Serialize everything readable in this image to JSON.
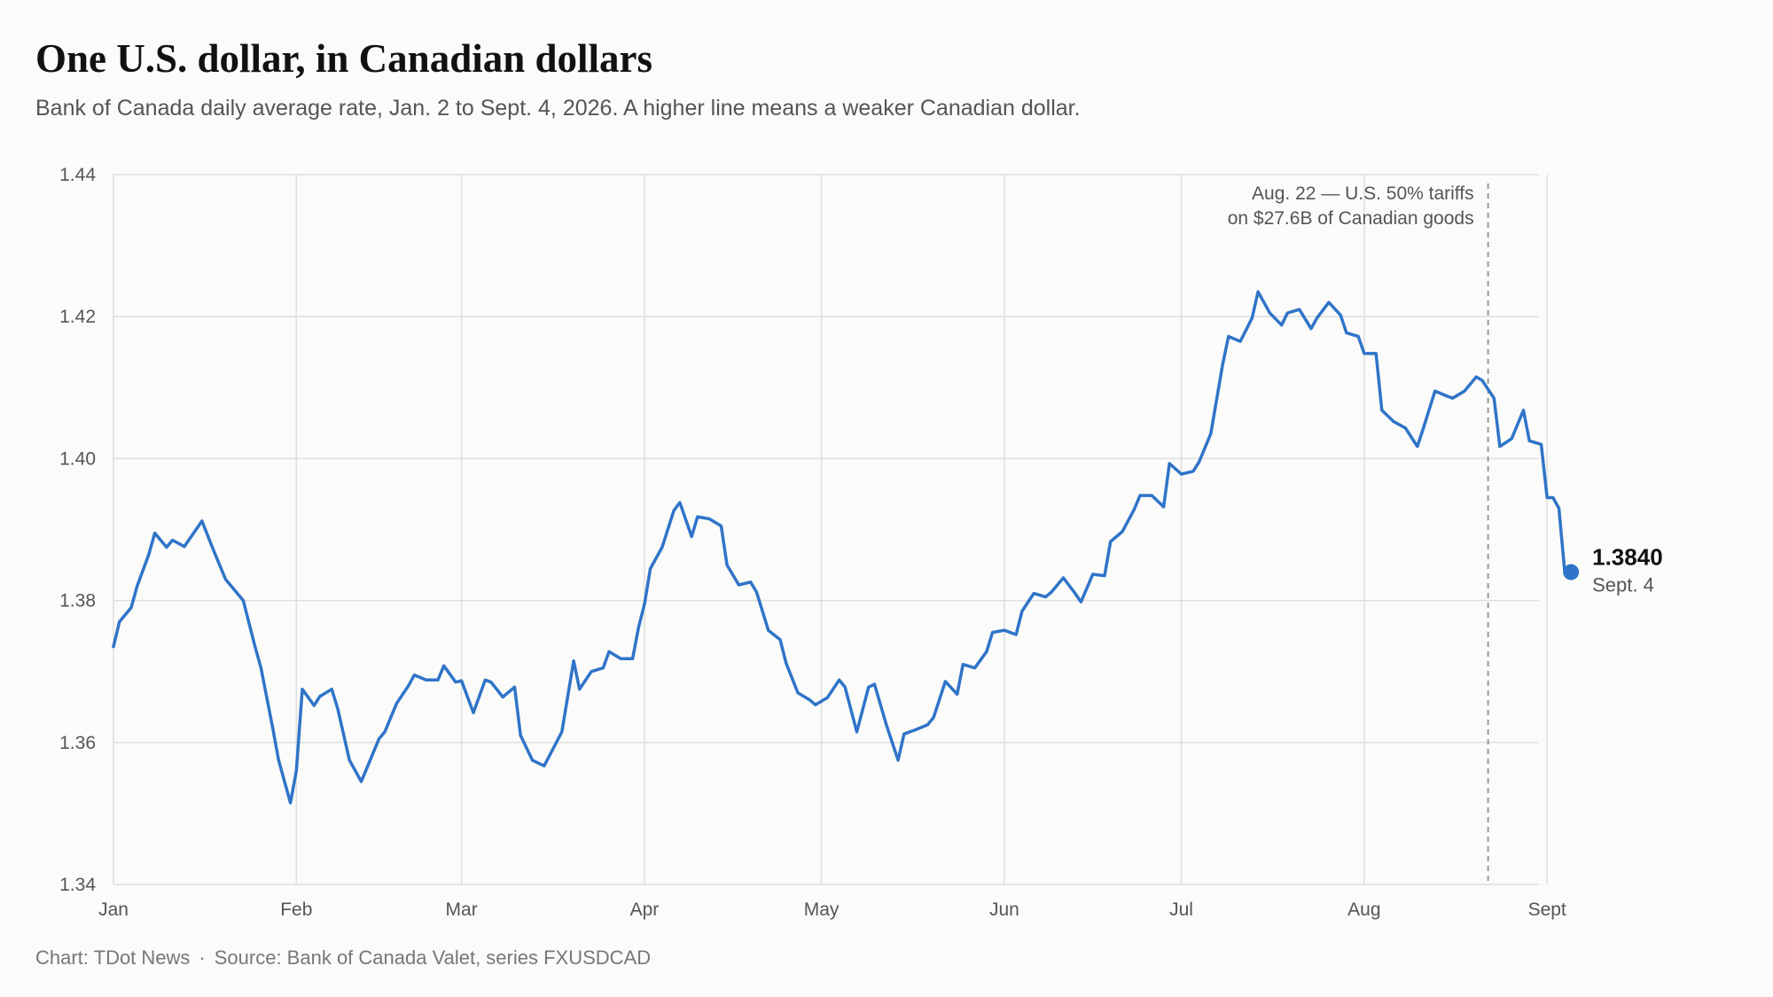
{
  "header": {
    "title": "One U.S. dollar, in Canadian dollars",
    "subtitle": "Bank of Canada daily average rate, Jan. 2 to Sept. 4, 2026. A higher line means a weaker Canadian dollar."
  },
  "footer": {
    "credit": "Chart: TDot News",
    "separator": "·",
    "source": "Source: Bank of Canada Valet, series FXUSDCAD"
  },
  "colors": {
    "line": "#2f74c8",
    "grid": "#dedede",
    "annotation_line": "#999999"
  },
  "chart_data": {
    "type": "line",
    "title": "One U.S. dollar, in Canadian dollars",
    "xlabel": "",
    "ylabel": "",
    "ylim": [
      1.34,
      1.44
    ],
    "yticks": [
      "1.34",
      "1.36",
      "1.38",
      "1.40",
      "1.42",
      "1.44"
    ],
    "xlim": [
      "2026-01-01",
      "2026-09-04"
    ],
    "xticks": [
      {
        "label": "Jan",
        "date": "2026-01-01"
      },
      {
        "label": "Feb",
        "date": "2026-02-01"
      },
      {
        "label": "Mar",
        "date": "2026-03-01"
      },
      {
        "label": "Apr",
        "date": "2026-04-01"
      },
      {
        "label": "May",
        "date": "2026-05-01"
      },
      {
        "label": "Jun",
        "date": "2026-06-01"
      },
      {
        "label": "Jul",
        "date": "2026-07-01"
      },
      {
        "label": "Aug",
        "date": "2026-08-01"
      },
      {
        "label": "Sept",
        "date": "2026-09-01"
      }
    ],
    "grid": true,
    "series": [
      {
        "name": "",
        "points": [
          [
            "2026-01-01",
            1.3735
          ],
          [
            "2026-01-02",
            1.377
          ],
          [
            "2026-01-04",
            1.379
          ],
          [
            "2026-01-05",
            1.382
          ],
          [
            "2026-01-07",
            1.3865
          ],
          [
            "2026-01-08",
            1.3895
          ],
          [
            "2026-01-10",
            1.3875
          ],
          [
            "2026-01-11",
            1.3885
          ],
          [
            "2026-01-13",
            1.3876
          ],
          [
            "2026-01-15",
            1.39
          ],
          [
            "2026-01-16",
            1.3912
          ],
          [
            "2026-01-18",
            1.387
          ],
          [
            "2026-01-20",
            1.383
          ],
          [
            "2026-01-21",
            1.382
          ],
          [
            "2026-01-23",
            1.38
          ],
          [
            "2026-01-25",
            1.3735
          ],
          [
            "2026-01-26",
            1.3705
          ],
          [
            "2026-01-28",
            1.362
          ],
          [
            "2026-01-29",
            1.3575
          ],
          [
            "2026-01-31",
            1.3515
          ],
          [
            "2026-02-01",
            1.356
          ],
          [
            "2026-02-02",
            1.3675
          ],
          [
            "2026-02-04",
            1.3652
          ],
          [
            "2026-02-05",
            1.3665
          ],
          [
            "2026-02-07",
            1.3675
          ],
          [
            "2026-02-08",
            1.3648
          ],
          [
            "2026-02-10",
            1.3575
          ],
          [
            "2026-02-12",
            1.3545
          ],
          [
            "2026-02-15",
            1.3605
          ],
          [
            "2026-02-16",
            1.3615
          ],
          [
            "2026-02-18",
            1.3655
          ],
          [
            "2026-02-20",
            1.368
          ],
          [
            "2026-02-21",
            1.3695
          ],
          [
            "2026-02-23",
            1.3688
          ],
          [
            "2026-02-25",
            1.3688
          ],
          [
            "2026-02-26",
            1.3708
          ],
          [
            "2026-02-28",
            1.3685
          ],
          [
            "2026-03-01",
            1.3687
          ],
          [
            "2026-03-03",
            1.3642
          ],
          [
            "2026-03-05",
            1.3688
          ],
          [
            "2026-03-06",
            1.3685
          ],
          [
            "2026-03-08",
            1.3664
          ],
          [
            "2026-03-10",
            1.3678
          ],
          [
            "2026-03-11",
            1.361
          ],
          [
            "2026-03-13",
            1.3575
          ],
          [
            "2026-03-15",
            1.3567
          ],
          [
            "2026-03-16",
            1.3583
          ],
          [
            "2026-03-18",
            1.3615
          ],
          [
            "2026-03-20",
            1.3715
          ],
          [
            "2026-03-21",
            1.3675
          ],
          [
            "2026-03-23",
            1.37
          ],
          [
            "2026-03-25",
            1.3705
          ],
          [
            "2026-03-26",
            1.3728
          ],
          [
            "2026-03-28",
            1.3718
          ],
          [
            "2026-03-30",
            1.3718
          ],
          [
            "2026-03-31",
            1.3762
          ],
          [
            "2026-04-01",
            1.3795
          ],
          [
            "2026-04-02",
            1.3845
          ],
          [
            "2026-04-04",
            1.3875
          ],
          [
            "2026-04-06",
            1.3927
          ],
          [
            "2026-04-07",
            1.3938
          ],
          [
            "2026-04-09",
            1.389
          ],
          [
            "2026-04-10",
            1.3918
          ],
          [
            "2026-04-12",
            1.3915
          ],
          [
            "2026-04-14",
            1.3905
          ],
          [
            "2026-04-15",
            1.385
          ],
          [
            "2026-04-17",
            1.3822
          ],
          [
            "2026-04-19",
            1.3826
          ],
          [
            "2026-04-20",
            1.3812
          ],
          [
            "2026-04-22",
            1.3758
          ],
          [
            "2026-04-24",
            1.3745
          ],
          [
            "2026-04-25",
            1.3712
          ],
          [
            "2026-04-27",
            1.367
          ],
          [
            "2026-04-29",
            1.366
          ],
          [
            "2026-04-30",
            1.3653
          ],
          [
            "2026-05-02",
            1.3663
          ],
          [
            "2026-05-04",
            1.3688
          ],
          [
            "2026-05-05",
            1.3678
          ],
          [
            "2026-05-07",
            1.3615
          ],
          [
            "2026-05-09",
            1.3678
          ],
          [
            "2026-05-10",
            1.3682
          ],
          [
            "2026-05-12",
            1.3625
          ],
          [
            "2026-05-14",
            1.3575
          ],
          [
            "2026-05-15",
            1.3612
          ],
          [
            "2026-05-17",
            1.3618
          ],
          [
            "2026-05-19",
            1.3625
          ],
          [
            "2026-05-20",
            1.3635
          ],
          [
            "2026-05-22",
            1.3686
          ],
          [
            "2026-05-24",
            1.3668
          ],
          [
            "2026-05-25",
            1.371
          ],
          [
            "2026-05-27",
            1.3705
          ],
          [
            "2026-05-29",
            1.3728
          ],
          [
            "2026-05-30",
            1.3755
          ],
          [
            "2026-06-01",
            1.3758
          ],
          [
            "2026-06-03",
            1.3752
          ],
          [
            "2026-06-04",
            1.3785
          ],
          [
            "2026-06-06",
            1.381
          ],
          [
            "2026-06-08",
            1.3805
          ],
          [
            "2026-06-09",
            1.3812
          ],
          [
            "2026-06-11",
            1.3832
          ],
          [
            "2026-06-13",
            1.381
          ],
          [
            "2026-06-14",
            1.3798
          ],
          [
            "2026-06-16",
            1.3837
          ],
          [
            "2026-06-18",
            1.3835
          ],
          [
            "2026-06-19",
            1.3883
          ],
          [
            "2026-06-21",
            1.3897
          ],
          [
            "2026-06-23",
            1.3928
          ],
          [
            "2026-06-24",
            1.3948
          ],
          [
            "2026-06-26",
            1.3948
          ],
          [
            "2026-06-28",
            1.3932
          ],
          [
            "2026-06-29",
            1.3993
          ],
          [
            "2026-07-01",
            1.3978
          ],
          [
            "2026-07-03",
            1.3982
          ],
          [
            "2026-07-04",
            1.3995
          ],
          [
            "2026-07-06",
            1.4035
          ],
          [
            "2026-07-08",
            1.4132
          ],
          [
            "2026-07-09",
            1.4172
          ],
          [
            "2026-07-11",
            1.4165
          ],
          [
            "2026-07-13",
            1.4198
          ],
          [
            "2026-07-14",
            1.4235
          ],
          [
            "2026-07-16",
            1.4205
          ],
          [
            "2026-07-18",
            1.4188
          ],
          [
            "2026-07-19",
            1.4205
          ],
          [
            "2026-07-21",
            1.421
          ],
          [
            "2026-07-23",
            1.4183
          ],
          [
            "2026-07-24",
            1.4198
          ],
          [
            "2026-07-26",
            1.422
          ],
          [
            "2026-07-28",
            1.4202
          ],
          [
            "2026-07-29",
            1.4177
          ],
          [
            "2026-07-31",
            1.4172
          ],
          [
            "2026-08-01",
            1.4148
          ],
          [
            "2026-08-03",
            1.4148
          ],
          [
            "2026-08-04",
            1.4068
          ],
          [
            "2026-08-06",
            1.4052
          ],
          [
            "2026-08-08",
            1.4043
          ],
          [
            "2026-08-10",
            1.4017
          ],
          [
            "2026-08-11",
            1.4042
          ],
          [
            "2026-08-13",
            1.4095
          ],
          [
            "2026-08-15",
            1.4088
          ],
          [
            "2026-08-16",
            1.4085
          ],
          [
            "2026-08-18",
            1.4095
          ],
          [
            "2026-08-20",
            1.4115
          ],
          [
            "2026-08-21",
            1.411
          ],
          [
            "2026-08-23",
            1.4085
          ],
          [
            "2026-08-24",
            1.4017
          ],
          [
            "2026-08-26",
            1.4028
          ],
          [
            "2026-08-28",
            1.4068
          ],
          [
            "2026-08-29",
            1.4025
          ],
          [
            "2026-08-31",
            1.402
          ],
          [
            "2026-09-01",
            1.3945
          ],
          [
            "2026-09-02",
            1.3945
          ],
          [
            "2026-09-03",
            1.393
          ],
          [
            "2026-09-04",
            1.384
          ]
        ]
      }
    ],
    "annotation": {
      "date": "2026-08-22",
      "line1": "Aug. 22 — U.S. 50% tariffs",
      "line2": "on $27.6B of Canadian goods"
    },
    "end_label": {
      "value_text": "1.3840",
      "date_text": "Sept. 4",
      "value": 1.384
    }
  }
}
